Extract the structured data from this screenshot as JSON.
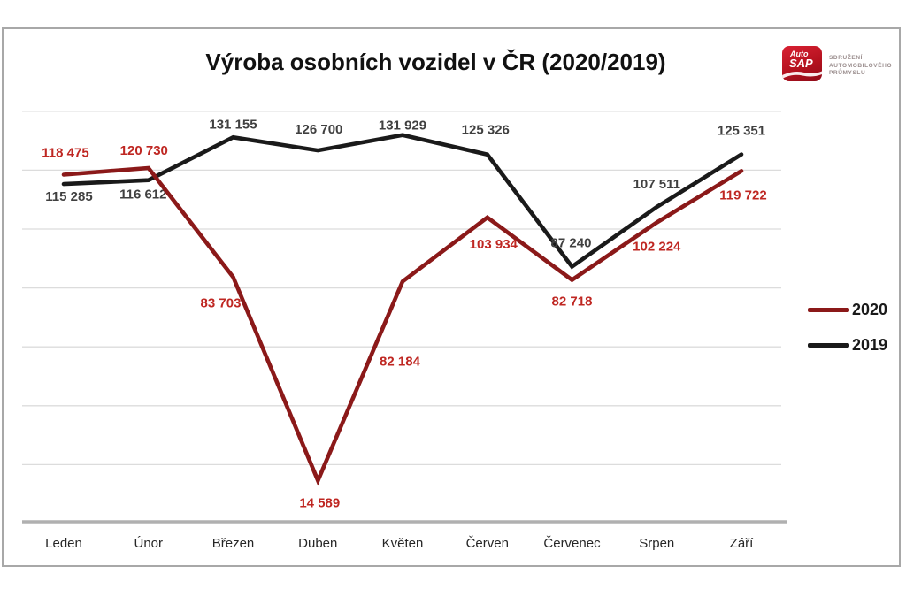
{
  "header": {
    "title": "Výroba osobních vozidel v ČR (2020/2019)"
  },
  "logo": {
    "brand_top": "Auto",
    "brand_bottom": "SAP",
    "org_lines": [
      "Sdružení",
      "automobilového",
      "průmyslu"
    ],
    "brand_bg_color": "#c01322"
  },
  "chart_data": {
    "type": "line",
    "title": "Výroba osobních vozidel v ČR (2020/2019)",
    "categories": [
      "Leden",
      "Únor",
      "Březen",
      "Duben",
      "Květen",
      "Červen",
      "Červenec",
      "Srpen",
      "Září"
    ],
    "series": [
      {
        "name": "2020",
        "color": "#8b1919",
        "label_color": "#bf2722",
        "values": [
          118475,
          120730,
          83703,
          14589,
          82184,
          103934,
          82718,
          102224,
          119722
        ],
        "labels": [
          "118 475",
          "120 730",
          "83 703",
          "14 589",
          "82 184",
          "103 934",
          "82 718",
          "102 224",
          "119 722"
        ]
      },
      {
        "name": "2019",
        "color": "#1a1a1a",
        "label_color": "#404040",
        "values": [
          115285,
          116612,
          131155,
          126700,
          131929,
          125326,
          87240,
          107511,
          125351
        ],
        "labels": [
          "115 285",
          "116 612",
          "131 155",
          "126 700",
          "131 929",
          "125 326",
          "87 240",
          "107 511",
          "125 351"
        ]
      }
    ],
    "xlabel": "",
    "ylabel": "",
    "ylim": [
      0,
      145000
    ],
    "gridline_step": 20000,
    "grid": true,
    "gridline_color": "#dcdcdc",
    "axis_color": "#b0b0b0",
    "legend_position": "right",
    "legend": [
      "2020",
      "2019"
    ]
  }
}
